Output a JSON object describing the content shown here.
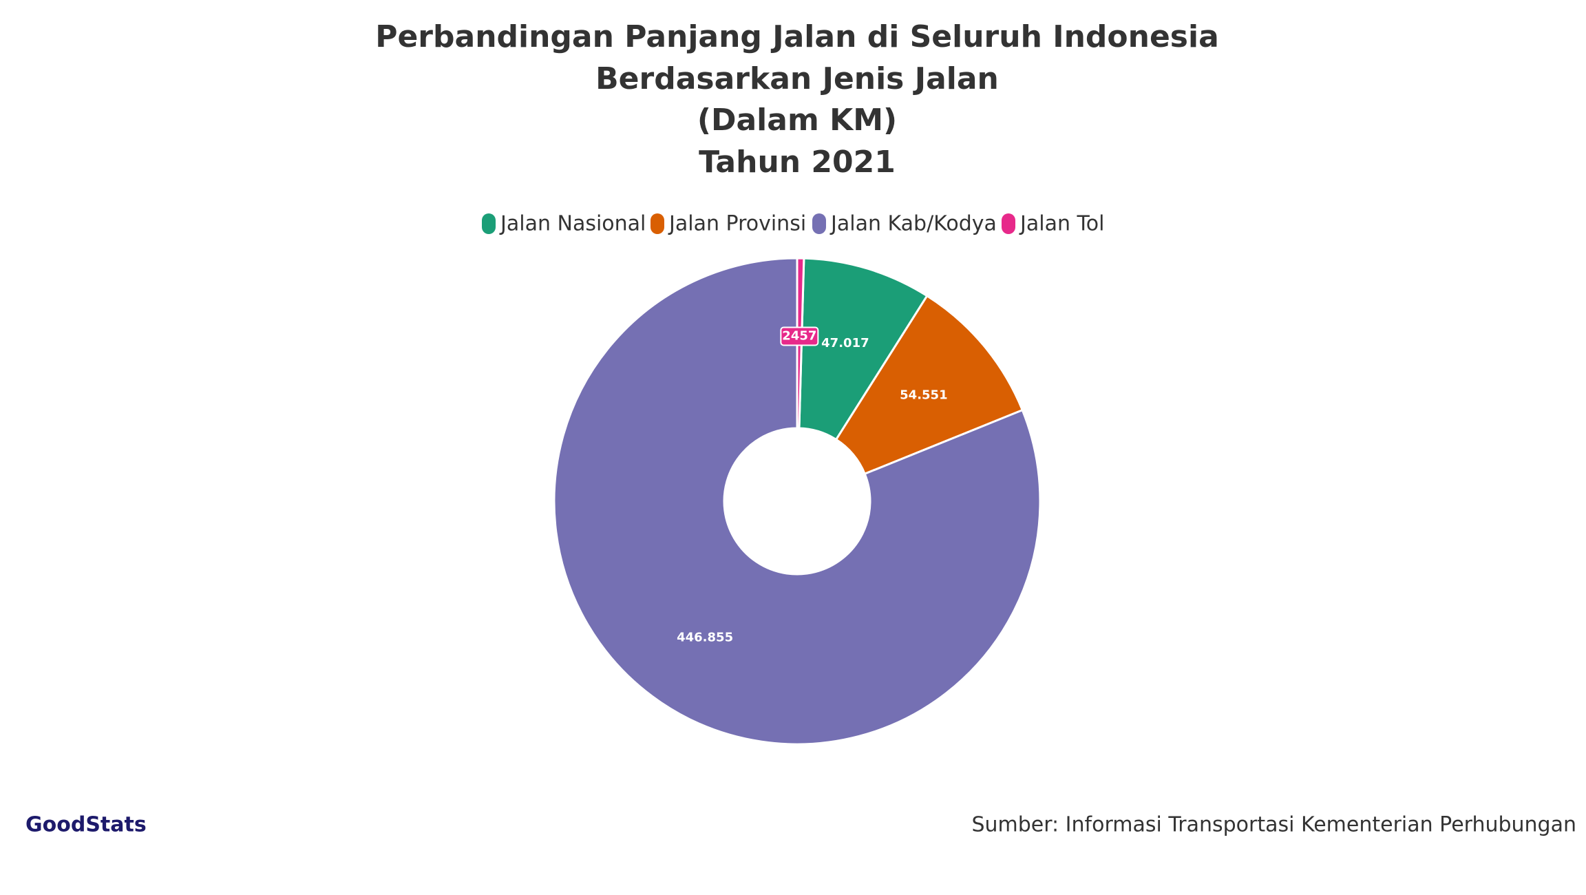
{
  "chart_data": {
    "type": "donut",
    "title_lines": [
      "Perbandingan Panjang Jalan di Seluruh Indonesia",
      "Berdasarkan Jenis Jalan",
      "(Dalam KM)",
      "Tahun 2021"
    ],
    "categories": [
      "Jalan Nasional",
      "Jalan Provinsi",
      "Jalan Kab/Kodya",
      "Jalan Tol"
    ],
    "values": [
      47017,
      54551,
      446855,
      2457
    ],
    "value_labels": [
      "47.017",
      "54.551",
      "446.855",
      "2457"
    ],
    "colors": [
      "#1b9e77",
      "#d95f02",
      "#7570b3",
      "#e7298a"
    ],
    "legend_position": "top",
    "source": "Sumber: Informasi Transportasi Kementerian Perhubungan",
    "logo": "GoodStats"
  }
}
